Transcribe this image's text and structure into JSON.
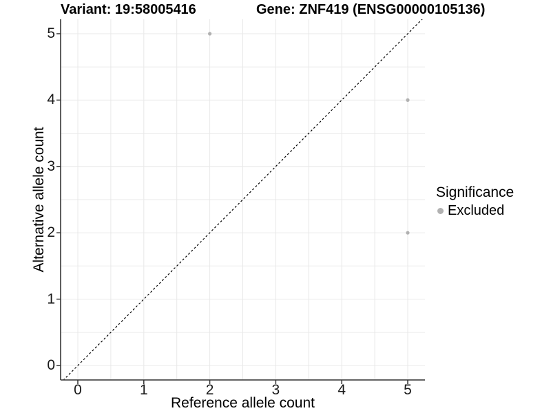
{
  "titles": {
    "variant": "Variant: 19:58005416",
    "gene": "Gene: ZNF419 (ENSG00000105136)"
  },
  "legend": {
    "title": "Significance",
    "items": [
      {
        "label": "Excluded",
        "color": "#b1b1b1"
      }
    ]
  },
  "chart_data": {
    "type": "scatter",
    "title_left": "Variant: 19:58005416",
    "title_right": "Gene: ZNF419 (ENSG00000105136)",
    "xlabel": "Reference allele count",
    "ylabel": "Alternative allele count",
    "xlim": [
      -0.26,
      5.26
    ],
    "ylim": [
      -0.22,
      5.22
    ],
    "xticks": [
      0,
      1,
      2,
      3,
      4,
      5
    ],
    "yticks": [
      0,
      1,
      2,
      3,
      4,
      5
    ],
    "grid": "on",
    "grid_step": 0.5,
    "legend_position": "right",
    "legend_title": "Significance",
    "series": [
      {
        "name": "Excluded",
        "color": "#b1b1b1",
        "points": [
          {
            "x": 2,
            "y": 5
          },
          {
            "x": 5,
            "y": 4
          },
          {
            "x": 5,
            "y": 2
          }
        ]
      }
    ],
    "reference_line": {
      "type": "identity",
      "equation": "y = x",
      "style": "dashed",
      "color": "#000000"
    }
  },
  "colors": {
    "background": "#ffffff",
    "grid": "#e8e8e8",
    "axis": "#4d4d4d",
    "tick": "#333333",
    "point": "#b1b1b1",
    "dashed": "#000000"
  }
}
